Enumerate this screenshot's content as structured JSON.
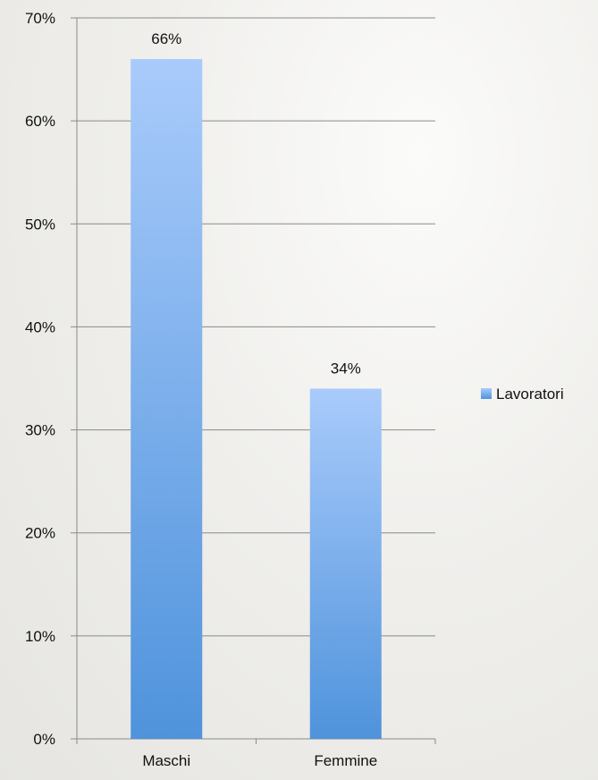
{
  "chart_data": {
    "type": "bar",
    "categories": [
      "Maschi",
      "Femmine"
    ],
    "series": [
      {
        "name": "Lavoratori",
        "values": [
          66,
          34
        ]
      }
    ],
    "data_labels": [
      "66%",
      "34%"
    ],
    "ylim": [
      0,
      70
    ],
    "y_ticks": [
      0,
      10,
      20,
      30,
      40,
      50,
      60,
      70
    ],
    "y_tick_labels": [
      "0%",
      "10%",
      "20%",
      "30%",
      "40%",
      "50%",
      "60%",
      "70%"
    ],
    "title": "",
    "xlabel": "",
    "ylabel": "",
    "grid": true,
    "legend_position": "right",
    "colors": {
      "bar_top": "#a9cbfb",
      "bar_bottom": "#4f93dc",
      "grid": "#8a8a8a"
    }
  }
}
